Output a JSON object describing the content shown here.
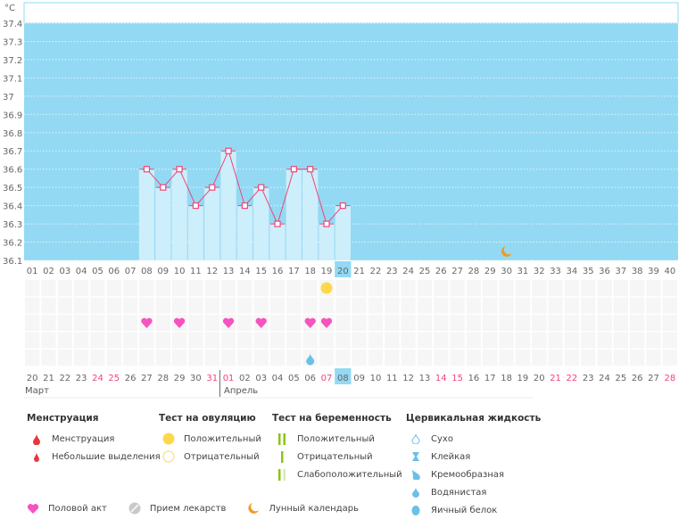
{
  "chart_data": {
    "type": "bar",
    "unit_label": "°C",
    "ylim": [
      36.1,
      37.4
    ],
    "yticks": [
      "36.1",
      "36.2",
      "36.3",
      "36.4",
      "36.5",
      "36.6",
      "36.7",
      "36.8",
      "36.9",
      "37",
      "37.1",
      "37.2",
      "37.3",
      "37.4"
    ],
    "cycle_days": [
      "01",
      "02",
      "03",
      "04",
      "05",
      "06",
      "07",
      "08",
      "09",
      "10",
      "11",
      "12",
      "13",
      "14",
      "15",
      "16",
      "17",
      "18",
      "19",
      "20",
      "21",
      "22",
      "23",
      "24",
      "25",
      "26",
      "27",
      "28",
      "29",
      "30",
      "31",
      "32",
      "33",
      "34",
      "35",
      "36",
      "37",
      "38",
      "39",
      "40"
    ],
    "temperatures": {
      "08": 36.6,
      "09": 36.5,
      "10": 36.6,
      "11": 36.4,
      "12": 36.5,
      "13": 36.7,
      "14": 36.4,
      "15": 36.5,
      "16": 36.3,
      "17": 36.6,
      "18": 36.6,
      "19": 36.3,
      "20": 36.4
    },
    "current_day": "20",
    "dates": [
      "20",
      "21",
      "22",
      "23",
      "24",
      "25",
      "26",
      "27",
      "28",
      "29",
      "30",
      "31",
      "01",
      "02",
      "03",
      "04",
      "05",
      "06",
      "07",
      "08",
      "09",
      "10",
      "11",
      "12",
      "13",
      "14",
      "15",
      "16",
      "17",
      "18",
      "19",
      "20",
      "21",
      "22",
      "23",
      "24",
      "25",
      "26",
      "27",
      "28"
    ],
    "weekend_dates_index": [
      4,
      5,
      11,
      12,
      18,
      25,
      26,
      32,
      33,
      39
    ],
    "current_date": "08",
    "months": [
      "Март",
      "Апрель"
    ],
    "markers": {
      "ovulation_positive": [
        "19"
      ],
      "intercourse": [
        "08",
        "10",
        "13",
        "15",
        "18",
        "19"
      ],
      "fluid_watery": [
        "18"
      ],
      "moon": [
        "30"
      ]
    },
    "colors": {
      "background": "#93d9f3",
      "bar": "#cdeefb",
      "line": "#f0457a",
      "weekend": "#f0457a",
      "highlight": "#93d9f3"
    },
    "grid": true
  },
  "legend": {
    "menstruation": {
      "title": "Менструация",
      "items": [
        "Менструация",
        "Небольшие выделения"
      ]
    },
    "ovulation": {
      "title": "Тест на овуляцию",
      "items": [
        "Положительный",
        "Отрицательный"
      ]
    },
    "pregnancy": {
      "title": "Тест на беременность",
      "items": [
        "Положительный",
        "Отрицательный",
        "Слабоположительный"
      ]
    },
    "fluid": {
      "title": "Цервикальная жидкость",
      "items": [
        "Сухо",
        "Клейкая",
        "Кремообразная",
        "Водянистая",
        "Яичный белок"
      ]
    },
    "other": [
      "Половой акт",
      "Прием лекарств",
      "Лунный календарь"
    ]
  }
}
